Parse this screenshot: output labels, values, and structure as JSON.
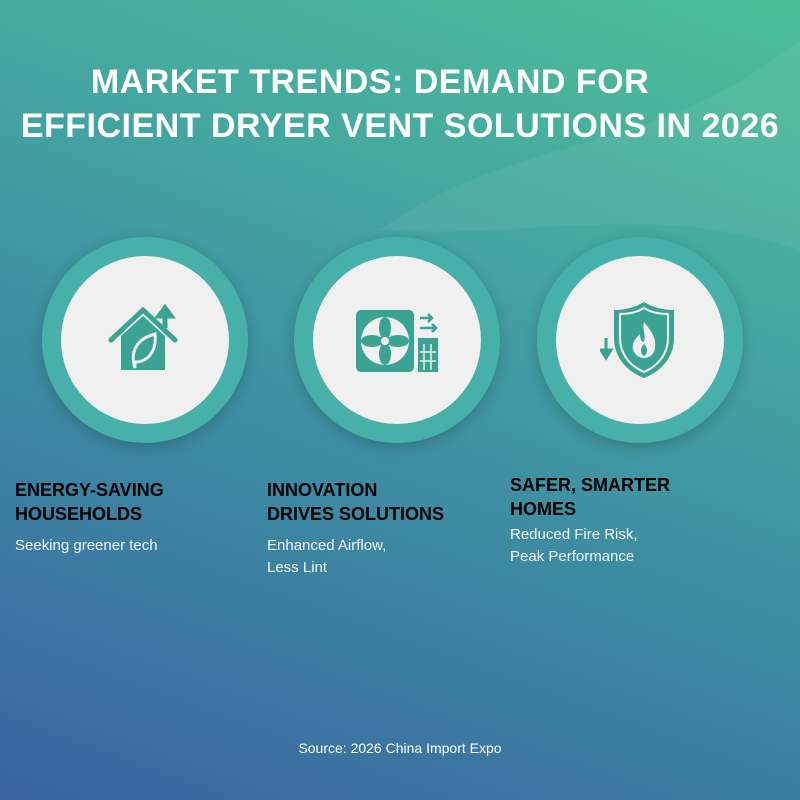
{
  "title": {
    "line1": "MARKET TRENDS: DEMAND FOR",
    "line2": "EFFICIENT DRYER VENT SOLUTIONS IN 2026"
  },
  "cards": [
    {
      "icon": "house-leaf-icon",
      "heading_1": "ENERGY-SAVING",
      "heading_2": "HOUSEHOLDS",
      "sub_1": "Seeking greener tech",
      "sub_2": ""
    },
    {
      "icon": "fan-filter-icon",
      "heading_1": "INNOVATION",
      "heading_2": "DRIVES SOLUTIONS",
      "sub_1": "Enhanced Airflow,",
      "sub_2": "Less Lint"
    },
    {
      "icon": "shield-fire-icon",
      "heading_1": "SAFER, SMARTER",
      "heading_2": "HOMES",
      "sub_1": "Reduced Fire Risk,",
      "sub_2": "Peak Performance"
    }
  ],
  "source": "Source: 2026 China Import Expo",
  "colors": {
    "icon": "#3aa394",
    "ring": "#47b0a8",
    "disc": "#f0f0f0"
  }
}
